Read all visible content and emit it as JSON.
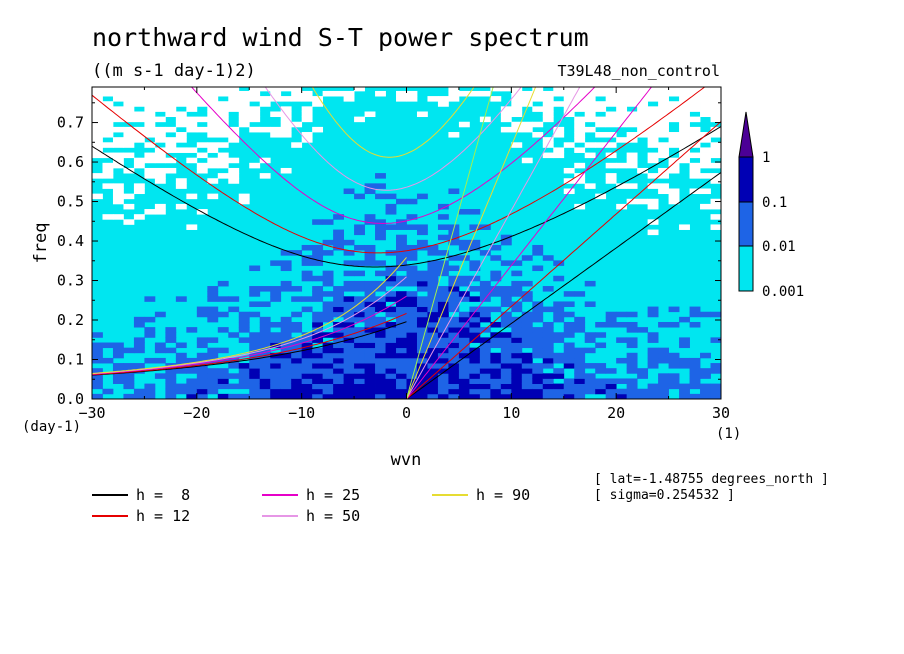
{
  "chart_data": {
    "type": "heatmap",
    "title": "northward wind S-T power spectrum",
    "subtitle": "((m s-1 day-1)2)",
    "run_label": "T39L48_non_control",
    "xlabel": "wvn",
    "ylabel": "freq",
    "x_unit": "(1)",
    "y_unit": "(day-1)",
    "xlim": [
      -30,
      30
    ],
    "ylim": [
      0,
      0.79
    ],
    "x_ticks": [
      -30,
      -20,
      -10,
      0,
      10,
      20,
      30
    ],
    "y_ticks": [
      0.0,
      0.1,
      0.2,
      0.3,
      0.4,
      0.5,
      0.6,
      0.7
    ],
    "colorbar": {
      "levels": [
        "1",
        "0.1",
        "0.01",
        "0.001"
      ],
      "colors": [
        "#0000b4",
        "#1e64e6",
        "#00e6f0",
        "#4b0096"
      ],
      "below_color": "#ffffff"
    },
    "dispersion_curves": [
      {
        "label": "h =  8",
        "h": 8,
        "color": "#000000"
      },
      {
        "label": "h = 12",
        "h": 12,
        "color": "#e60000"
      },
      {
        "label": "h = 25",
        "h": 25,
        "color": "#e600c8"
      },
      {
        "label": "h = 50",
        "h": 50,
        "color": "#e696e6"
      },
      {
        "label": "h = 90",
        "h": 90,
        "color": "#e6dc32"
      }
    ],
    "kelvin_lines": [
      {
        "h": 8,
        "color": "#000000"
      },
      {
        "h": 12,
        "color": "#e60000"
      },
      {
        "h": 25,
        "color": "#e600c8"
      },
      {
        "h": 50,
        "color": "#e696e6"
      },
      {
        "h": 90,
        "color": "#e6dc32"
      },
      {
        "h": 200,
        "color": "#a0f050"
      }
    ],
    "annotations": [
      "[ lat=-1.48755 degrees_north ]",
      "[ sigma=0.254532 ]"
    ]
  }
}
